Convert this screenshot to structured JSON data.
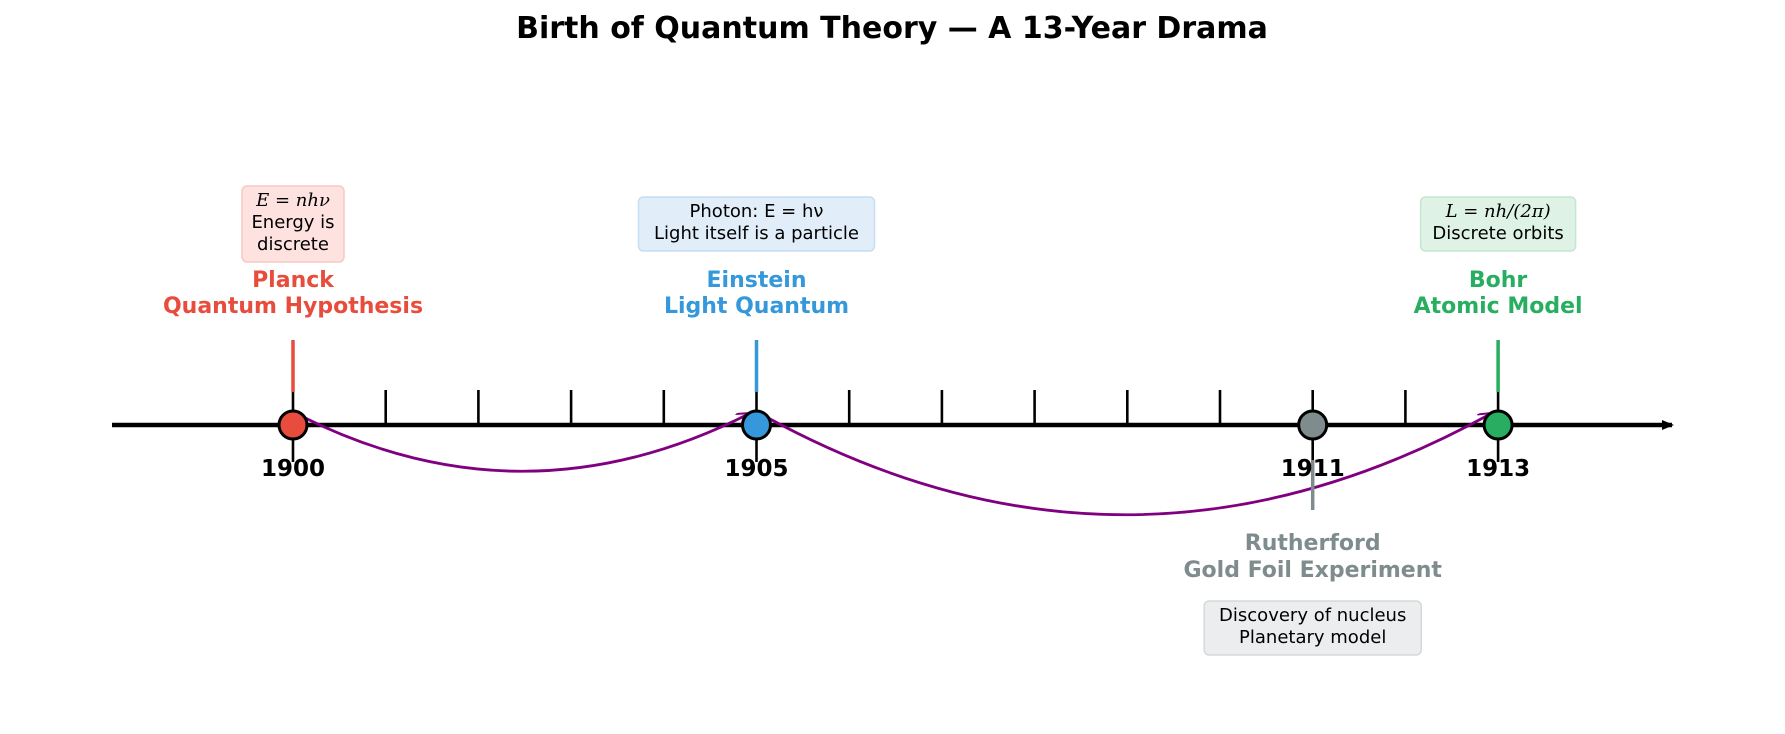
{
  "title": "Birth of Quantum Theory — A 13-Year Drama",
  "axis": {
    "start_year": 1899,
    "end_year": 1915.2
  },
  "tick_years": [
    1900,
    1901,
    1902,
    1903,
    1904,
    1905,
    1906,
    1907,
    1908,
    1909,
    1910,
    1911,
    1912,
    1913
  ],
  "year_labels": [
    "1900",
    "1905",
    "1911",
    "1913"
  ],
  "events": [
    {
      "year": 1900,
      "side": "above",
      "color": "#e74c3c",
      "note_fill": "#fde2df",
      "note_stroke": "#f7c9c3",
      "name_line1": "Planck",
      "name_line2": "Quantum Hypothesis",
      "note_lines": [
        "E = nhν",
        "Energy is",
        "discrete"
      ]
    },
    {
      "year": 1905,
      "side": "above",
      "color": "#3498db",
      "note_fill": "#e1eef9",
      "note_stroke": "#c6def2",
      "name_line1": "Einstein",
      "name_line2": "Light Quantum",
      "note_lines": [
        "Photon: E = hν",
        "Light itself is a particle"
      ]
    },
    {
      "year": 1911,
      "side": "below",
      "color": "#7f8c8d",
      "note_fill": "#ebedee",
      "note_stroke": "#d5d9da",
      "name_line1": "Rutherford",
      "name_line2": "Gold Foil Experiment",
      "note_lines": [
        "Discovery of nucleus",
        "Planetary model"
      ]
    },
    {
      "year": 1913,
      "side": "above",
      "color": "#27ae60",
      "note_fill": "#def2e6",
      "note_stroke": "#c4e7d1",
      "name_line1": "Bohr",
      "name_line2": "Atomic Model",
      "note_lines": [
        "L = nh/(2π)",
        "Discrete orbits"
      ]
    }
  ],
  "arrows": [
    {
      "from": 1900,
      "to": 1905,
      "color": "#800080"
    },
    {
      "from": 1905,
      "to": 1913,
      "color": "#800080"
    }
  ]
}
